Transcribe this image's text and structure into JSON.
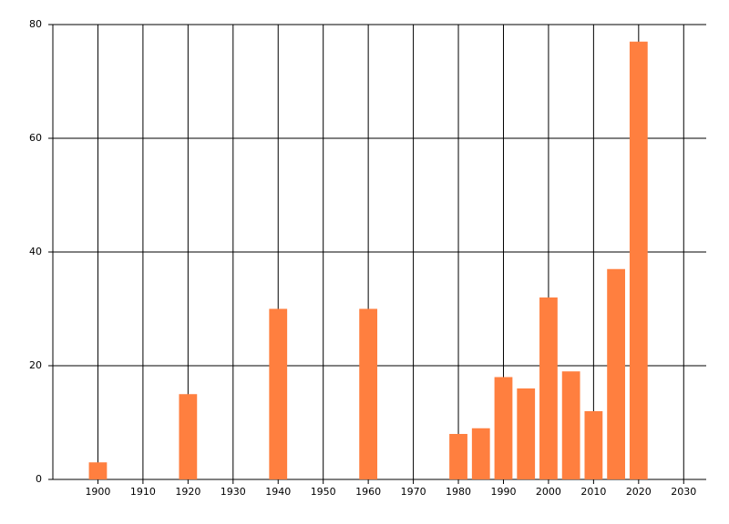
{
  "chart_data": {
    "type": "bar",
    "x": [
      1900,
      1920,
      1940,
      1960,
      1980,
      1985,
      1990,
      1995,
      2000,
      2005,
      2010,
      2015,
      2020
    ],
    "values": [
      3,
      15,
      30,
      30,
      8,
      9,
      18,
      16,
      32,
      19,
      12,
      37,
      77
    ],
    "color": "#ff7f3f",
    "xlim": [
      1890,
      2035
    ],
    "xticks": [
      1900,
      1910,
      1920,
      1930,
      1940,
      1950,
      1960,
      1970,
      1980,
      1990,
      2000,
      2010,
      2020,
      2030
    ],
    "ylim": [
      0,
      80
    ],
    "yticks": [
      0,
      20,
      40,
      60,
      80
    ],
    "grid": true
  }
}
